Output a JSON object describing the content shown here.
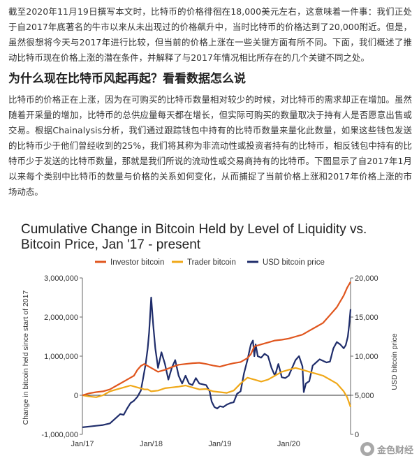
{
  "article": {
    "paragraph1": "截至2020年11月19日撰写本文时，比特币的价格徘徊在18,000美元左右，这意味着一件事：我们正处于自2017年底著名的牛市以来从未出现过的价格飙升中，当时比特币的价格达到了20,000附近。但是，虽然很想将今天与2017年进行比较，但当前的价格上涨在一些关键方面有所不同。下面，我们概述了推动比特币现在价格上涨的潜在条件，并解释了与2017年情况相比所存在的几个关键不同之处。",
    "heading": "为什么现在比特币风起再起？看看数据怎么说",
    "paragraph2": "比特币的价格正在上涨，因为在可购买的比特币数量相对较少的时候，对比特币的需求却正在增加。虽然随着开采量的增加，比特币的总供应量每天都在增长，但实际可购买的数量取决于持有人是否愿意出售或交易。根据Chainalysis分析，我们通过跟踪钱包中持有的比特币数量来量化此数量，如果这些钱包发送的比特币少于他们曾经收到的25%，我们将其称为非流动性或投资者持有的比特币，相反钱包中持有的比特币少于发送的比特币数量，那就是我们所说的流动性或交易商持有的比特币。下图显示了自2017年1月以来每个类别中比特币的数量与价格的关系如何变化，从而捕捉了当前价格上涨和2017年价格上涨的市场动态。"
  },
  "watermark": "金色财经",
  "chart_data": {
    "type": "line",
    "title_line1": "Cumulative Change in Bitcoin Held by Level of Liquidity vs.",
    "title_line2": "Bitcoin Price, Jan '17 - present",
    "ylabel_left": "Change in bitcoin held since start of 2017",
    "ylabel_right": "USD bitcoin price",
    "legend_position": "top",
    "grid": false,
    "x_range": [
      2017.0,
      2020.9
    ],
    "x_ticks": [
      {
        "x": 2017.0,
        "label": "Jan/17"
      },
      {
        "x": 2018.0,
        "label": "Jan/18"
      },
      {
        "x": 2019.0,
        "label": "Jan/19"
      },
      {
        "x": 2020.0,
        "label": "Jan/20"
      }
    ],
    "ylim_left": [
      -1000000,
      3000000
    ],
    "ylim_right": [
      0,
      20000
    ],
    "yticks_left": [
      {
        "v": 3000000,
        "label": "3,000,000"
      },
      {
        "v": 2000000,
        "label": "2,000,000"
      },
      {
        "v": 1000000,
        "label": "1,000,000"
      },
      {
        "v": 0,
        "label": "0"
      },
      {
        "v": -1000000,
        "label": "-1,000,000"
      }
    ],
    "yticks_right": [
      {
        "v": 20000,
        "label": "20,000"
      },
      {
        "v": 15000,
        "label": "15,000"
      },
      {
        "v": 10000,
        "label": "10,000"
      },
      {
        "v": 5000,
        "label": "5,000"
      },
      {
        "v": 0,
        "label": "0"
      }
    ],
    "series": [
      {
        "name": "Investor bitcoin",
        "color": "#e0561e",
        "axis": "left",
        "x": [
          2017.0,
          2017.1,
          2017.2,
          2017.3,
          2017.4,
          2017.5,
          2017.6,
          2017.7,
          2017.75,
          2017.8,
          2017.85,
          2017.9,
          2017.95,
          2018.0,
          2018.05,
          2018.1,
          2018.2,
          2018.3,
          2018.4,
          2018.5,
          2018.6,
          2018.7,
          2018.8,
          2018.9,
          2019.0,
          2019.1,
          2019.2,
          2019.3,
          2019.4,
          2019.45,
          2019.5,
          2019.6,
          2019.7,
          2019.8,
          2019.9,
          2020.0,
          2020.1,
          2020.2,
          2020.3,
          2020.4,
          2020.5,
          2020.6,
          2020.7,
          2020.8,
          2020.85,
          2020.9
        ],
        "y": [
          0,
          50000,
          80000,
          100000,
          150000,
          250000,
          350000,
          450000,
          500000,
          650000,
          750000,
          800000,
          750000,
          700000,
          650000,
          600000,
          650000,
          720000,
          780000,
          800000,
          820000,
          830000,
          800000,
          760000,
          730000,
          780000,
          820000,
          850000,
          950000,
          1050000,
          1250000,
          1300000,
          1350000,
          1400000,
          1420000,
          1450000,
          1500000,
          1550000,
          1650000,
          1750000,
          1850000,
          2050000,
          2250000,
          2550000,
          2750000,
          2900000
        ]
      },
      {
        "name": "Trader bitcoin",
        "color": "#f0a818",
        "axis": "left",
        "x": [
          2017.0,
          2017.1,
          2017.2,
          2017.3,
          2017.4,
          2017.5,
          2017.6,
          2017.7,
          2017.8,
          2017.9,
          2017.95,
          2018.0,
          2018.1,
          2018.2,
          2018.3,
          2018.4,
          2018.5,
          2018.6,
          2018.7,
          2018.8,
          2018.9,
          2019.0,
          2019.1,
          2019.2,
          2019.3,
          2019.4,
          2019.5,
          2019.6,
          2019.7,
          2019.8,
          2019.9,
          2020.0,
          2020.1,
          2020.2,
          2020.3,
          2020.4,
          2020.5,
          2020.6,
          2020.7,
          2020.8,
          2020.85,
          2020.9
        ],
        "y": [
          0,
          -30000,
          -50000,
          0,
          100000,
          150000,
          200000,
          250000,
          200000,
          150000,
          150000,
          100000,
          120000,
          180000,
          200000,
          220000,
          250000,
          200000,
          150000,
          160000,
          100000,
          80000,
          60000,
          120000,
          300000,
          450000,
          400000,
          350000,
          400000,
          500000,
          600000,
          650000,
          700000,
          650000,
          600000,
          550000,
          500000,
          400000,
          300000,
          100000,
          -50000,
          -300000
        ]
      },
      {
        "name": "USD bitcoin price",
        "color": "#1f2d6b",
        "axis": "right",
        "x": [
          2017.0,
          2017.1,
          2017.2,
          2017.3,
          2017.4,
          2017.5,
          2017.55,
          2017.6,
          2017.65,
          2017.7,
          2017.75,
          2017.8,
          2017.85,
          2017.88,
          2017.92,
          2017.95,
          2017.97,
          2018.0,
          2018.03,
          2018.06,
          2018.1,
          2018.15,
          2018.2,
          2018.25,
          2018.3,
          2018.35,
          2018.4,
          2018.45,
          2018.5,
          2018.55,
          2018.6,
          2018.65,
          2018.7,
          2018.75,
          2018.8,
          2018.85,
          2018.88,
          2018.92,
          2018.96,
          2019.0,
          2019.05,
          2019.1,
          2019.15,
          2019.2,
          2019.25,
          2019.3,
          2019.35,
          2019.4,
          2019.45,
          2019.48,
          2019.5,
          2019.52,
          2019.55,
          2019.6,
          2019.65,
          2019.7,
          2019.75,
          2019.8,
          2019.85,
          2019.88,
          2019.9,
          2019.95,
          2020.0,
          2020.05,
          2020.1,
          2020.15,
          2020.2,
          2020.22,
          2020.25,
          2020.3,
          2020.35,
          2020.4,
          2020.45,
          2020.5,
          2020.55,
          2020.6,
          2020.65,
          2020.7,
          2020.75,
          2020.8,
          2020.83,
          2020.86,
          2020.88,
          2020.9
        ],
        "y": [
          900,
          1000,
          1100,
          1200,
          1400,
          2200,
          2600,
          2500,
          3300,
          4000,
          4300,
          4800,
          5600,
          7000,
          9000,
          11000,
          13000,
          17500,
          14000,
          11000,
          8500,
          10500,
          9000,
          7000,
          8500,
          9500,
          7500,
          6500,
          7500,
          6500,
          6300,
          7200,
          6500,
          6400,
          6300,
          5500,
          4200,
          3500,
          3300,
          3600,
          3500,
          3800,
          4000,
          4100,
          5200,
          5500,
          7800,
          9500,
          11500,
          12000,
          10000,
          11500,
          10000,
          9800,
          10300,
          10000,
          8500,
          7500,
          9000,
          8000,
          7300,
          7200,
          7500,
          8500,
          9500,
          10000,
          8700,
          5400,
          6500,
          6800,
          8800,
          9200,
          9600,
          9400,
          9200,
          9300,
          11000,
          11800,
          11500,
          11000,
          11400,
          12500,
          14000,
          16000
        ]
      }
    ]
  }
}
